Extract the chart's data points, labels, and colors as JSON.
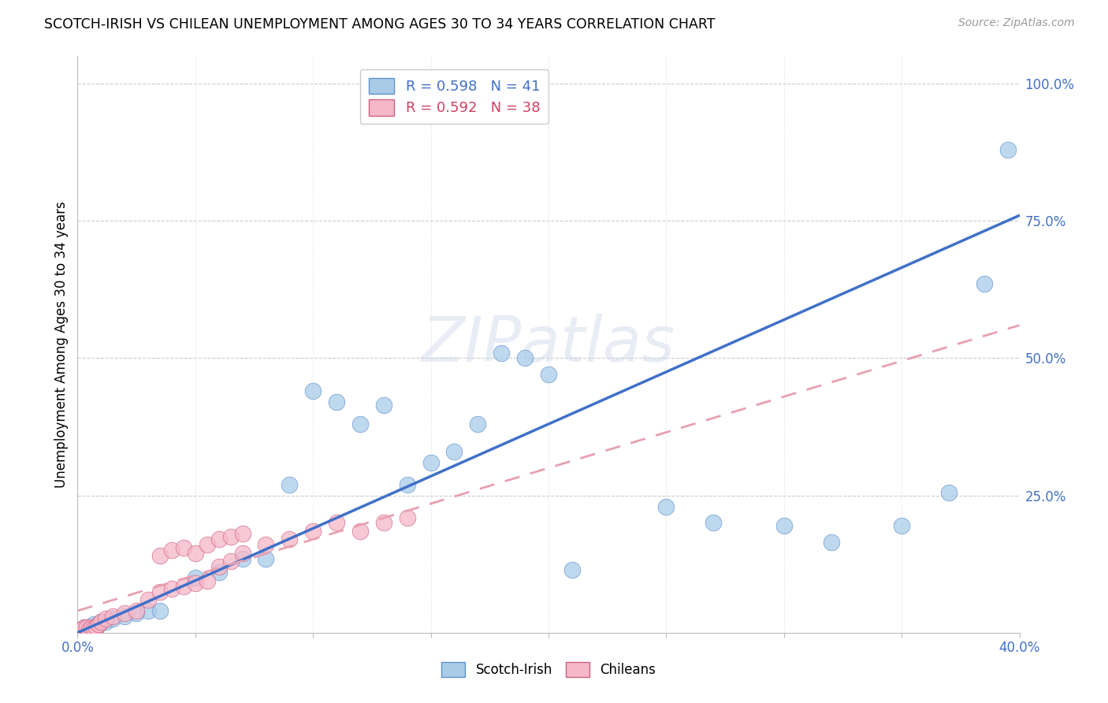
{
  "title": "SCOTCH-IRISH VS CHILEAN UNEMPLOYMENT AMONG AGES 30 TO 34 YEARS CORRELATION CHART",
  "source": "Source: ZipAtlas.com",
  "ylabel": "Unemployment Among Ages 30 to 34 years",
  "xlim": [
    0.0,
    0.4
  ],
  "ylim": [
    0.0,
    1.05
  ],
  "xticks": [
    0.0,
    0.05,
    0.1,
    0.15,
    0.2,
    0.25,
    0.3,
    0.35,
    0.4
  ],
  "xticklabels": [
    "0.0%",
    "",
    "",
    "",
    "",
    "",
    "",
    "",
    "40.0%"
  ],
  "ytick_positions": [
    0.25,
    0.5,
    0.75,
    1.0
  ],
  "yticklabels": [
    "25.0%",
    "50.0%",
    "75.0%",
    "100.0%"
  ],
  "scotch_irish_r": 0.598,
  "scotch_irish_n": 41,
  "chilean_r": 0.592,
  "chilean_n": 38,
  "scotch_irish_color": "#a8cce8",
  "chilean_color": "#f5b8c8",
  "scotch_irish_line_color": "#4070c8",
  "chilean_line_color": "#e8a0b0",
  "watermark": "ZIPatlas",
  "scotch_irish_x": [
    0.001,
    0.002,
    0.003,
    0.004,
    0.005,
    0.006,
    0.007,
    0.008,
    0.009,
    0.01,
    0.012,
    0.015,
    0.02,
    0.025,
    0.03,
    0.035,
    0.05,
    0.06,
    0.07,
    0.08,
    0.09,
    0.1,
    0.11,
    0.12,
    0.13,
    0.14,
    0.15,
    0.16,
    0.17,
    0.18,
    0.19,
    0.2,
    0.21,
    0.25,
    0.27,
    0.3,
    0.32,
    0.35,
    0.37,
    0.385,
    0.395
  ],
  "scotch_irish_y": [
    0.005,
    0.005,
    0.01,
    0.01,
    0.01,
    0.01,
    0.015,
    0.01,
    0.015,
    0.02,
    0.02,
    0.025,
    0.03,
    0.035,
    0.04,
    0.04,
    0.1,
    0.11,
    0.135,
    0.135,
    0.27,
    0.44,
    0.42,
    0.38,
    0.415,
    0.27,
    0.31,
    0.33,
    0.38,
    0.51,
    0.5,
    0.47,
    0.115,
    0.23,
    0.2,
    0.195,
    0.165,
    0.195,
    0.255,
    0.635,
    0.88
  ],
  "chilean_x": [
    0.001,
    0.002,
    0.003,
    0.004,
    0.005,
    0.006,
    0.007,
    0.008,
    0.009,
    0.01,
    0.012,
    0.015,
    0.02,
    0.025,
    0.03,
    0.035,
    0.04,
    0.045,
    0.05,
    0.055,
    0.06,
    0.065,
    0.07,
    0.08,
    0.09,
    0.1,
    0.11,
    0.12,
    0.13,
    0.14,
    0.035,
    0.04,
    0.045,
    0.05,
    0.055,
    0.06,
    0.065,
    0.07
  ],
  "chilean_y": [
    0.005,
    0.005,
    0.01,
    0.01,
    0.005,
    0.01,
    0.008,
    0.01,
    0.015,
    0.02,
    0.025,
    0.03,
    0.035,
    0.04,
    0.06,
    0.075,
    0.08,
    0.085,
    0.09,
    0.095,
    0.12,
    0.13,
    0.145,
    0.16,
    0.17,
    0.185,
    0.2,
    0.185,
    0.2,
    0.21,
    0.14,
    0.15,
    0.155,
    0.145,
    0.16,
    0.17,
    0.175,
    0.18
  ],
  "si_line_x0": 0.0,
  "si_line_y0": 0.0,
  "si_line_x1": 0.4,
  "si_line_y1": 0.76,
  "ch_line_x0": 0.0,
  "ch_line_y0": 0.04,
  "ch_line_x1": 0.4,
  "ch_line_y1": 0.56
}
